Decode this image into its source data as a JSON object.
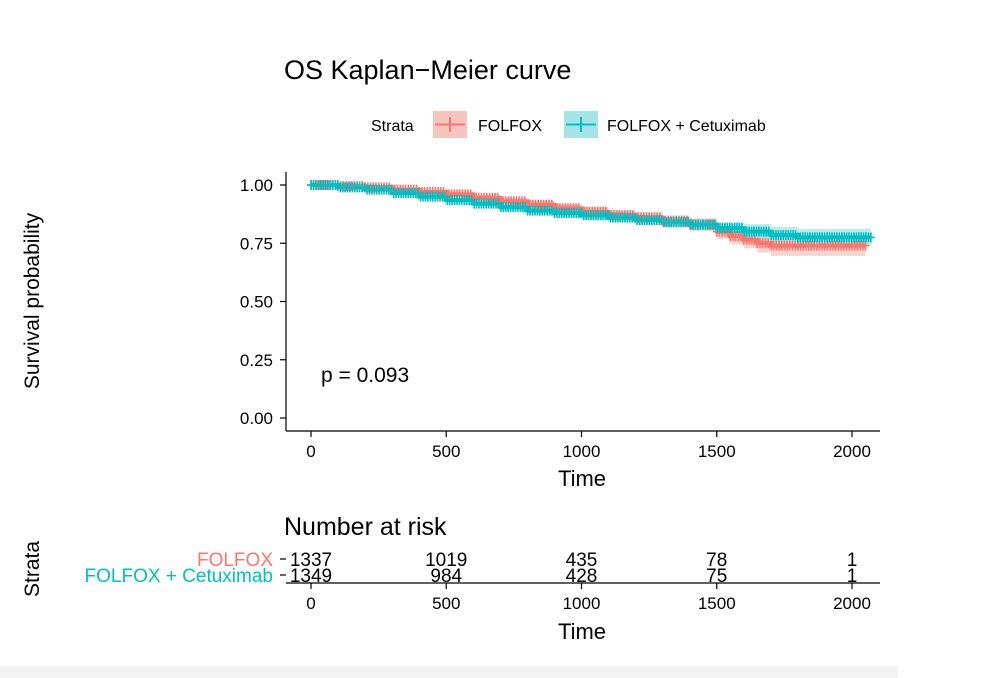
{
  "chart_data": [
    {
      "type": "line",
      "subtype": "kaplan-meier",
      "title": "OS Kaplan−Meier curve",
      "xlabel": "Time",
      "ylabel": "Survival probability",
      "xlim": [
        0,
        2100
      ],
      "ylim": [
        0,
        1.05
      ],
      "x_ticks": [
        0,
        500,
        1000,
        1500,
        2000
      ],
      "x_tick_labels": [
        "0",
        "500",
        "1000",
        "1500",
        "2000"
      ],
      "y_ticks": [
        0,
        0.25,
        0.5,
        0.75,
        1.0
      ],
      "y_tick_labels": [
        "0.00",
        "0.25",
        "0.50",
        "0.75",
        "1.00"
      ],
      "grid": false,
      "legend": {
        "title": "Strata",
        "placement": "top"
      },
      "annotation": "p = 0.093",
      "series": [
        {
          "name": "FOLFOX",
          "color": "#F8766D",
          "ci_color": "#f6c5c0",
          "x": [
            0,
            100,
            200,
            300,
            400,
            500,
            600,
            700,
            800,
            900,
            1000,
            1100,
            1200,
            1300,
            1400,
            1500,
            1550,
            1600,
            1650,
            1700,
            1800,
            1900,
            2000,
            2050
          ],
          "y": [
            1.0,
            0.995,
            0.99,
            0.98,
            0.97,
            0.96,
            0.945,
            0.93,
            0.915,
            0.9,
            0.885,
            0.87,
            0.86,
            0.845,
            0.83,
            0.8,
            0.78,
            0.765,
            0.75,
            0.74,
            0.74,
            0.74,
            0.74,
            0.74
          ],
          "ci_lower": [
            1.0,
            0.99,
            0.984,
            0.972,
            0.96,
            0.948,
            0.932,
            0.915,
            0.898,
            0.882,
            0.865,
            0.848,
            0.836,
            0.82,
            0.802,
            0.768,
            0.745,
            0.728,
            0.71,
            0.696,
            0.696,
            0.696,
            0.696,
            0.696
          ],
          "ci_upper": [
            1.0,
            0.999,
            0.996,
            0.988,
            0.98,
            0.972,
            0.958,
            0.945,
            0.932,
            0.918,
            0.905,
            0.892,
            0.884,
            0.87,
            0.858,
            0.832,
            0.815,
            0.802,
            0.79,
            0.784,
            0.784,
            0.784,
            0.784,
            0.784
          ]
        },
        {
          "name": "FOLFOX + Cetuximab",
          "color": "#00BFC4",
          "ci_color": "#a6e3e6",
          "x": [
            0,
            100,
            200,
            300,
            400,
            500,
            600,
            700,
            800,
            900,
            1000,
            1100,
            1200,
            1300,
            1400,
            1500,
            1600,
            1700,
            1800,
            1900,
            2000,
            2070
          ],
          "y": [
            1.0,
            0.99,
            0.98,
            0.965,
            0.95,
            0.935,
            0.92,
            0.905,
            0.89,
            0.88,
            0.87,
            0.86,
            0.85,
            0.84,
            0.83,
            0.815,
            0.8,
            0.785,
            0.775,
            0.775,
            0.775,
            0.775
          ],
          "ci_lower": [
            1.0,
            0.985,
            0.973,
            0.957,
            0.94,
            0.924,
            0.907,
            0.891,
            0.874,
            0.863,
            0.852,
            0.841,
            0.83,
            0.818,
            0.806,
            0.788,
            0.768,
            0.75,
            0.738,
            0.738,
            0.738,
            0.738
          ],
          "ci_upper": [
            1.0,
            0.996,
            0.987,
            0.973,
            0.96,
            0.946,
            0.933,
            0.919,
            0.906,
            0.897,
            0.888,
            0.879,
            0.87,
            0.862,
            0.854,
            0.842,
            0.832,
            0.82,
            0.812,
            0.812,
            0.812,
            0.812
          ]
        }
      ]
    },
    {
      "type": "table",
      "title": "Number at risk",
      "xlabel": "Time",
      "ylabel": "Strata",
      "x_ticks": [
        0,
        500,
        1000,
        1500,
        2000
      ],
      "x_tick_labels": [
        "0",
        "500",
        "1000",
        "1500",
        "2000"
      ],
      "rows": [
        {
          "name": "FOLFOX",
          "color": "#F8766D",
          "counts": [
            "1337",
            "1019",
            "435",
            "78",
            "1"
          ]
        },
        {
          "name": "FOLFOX + Cetuximab",
          "color": "#00BFC4",
          "counts": [
            "1349",
            "984",
            "428",
            "75",
            "1"
          ]
        }
      ]
    }
  ]
}
